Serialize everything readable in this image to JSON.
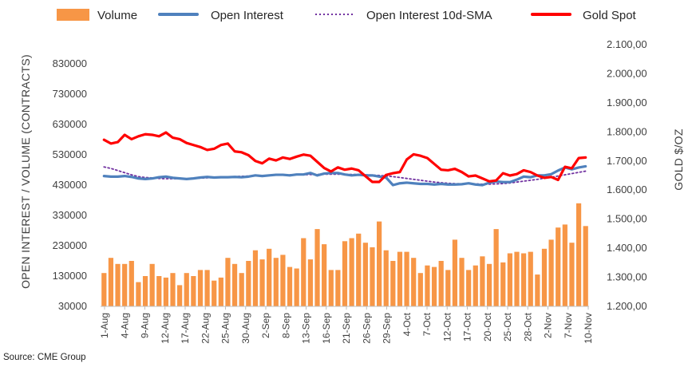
{
  "chart_data": {
    "type": "combo-bar-line",
    "source": "Source: CME Group",
    "left_axis": {
      "title": "OPEN INTEREST / VOLUME (CONTRACTS)",
      "min": 30000,
      "max": 830000,
      "ticks": [
        30000,
        130000,
        230000,
        330000,
        430000,
        530000,
        630000,
        730000,
        830000
      ],
      "tick_labels": [
        "30000",
        "130000",
        "230000",
        "330000",
        "430000",
        "530000",
        "630000",
        "730000",
        "830000"
      ]
    },
    "right_axis": {
      "title": "GOLD $/OZ",
      "min": 1200,
      "max": 2100,
      "ticks": [
        1200,
        1300,
        1400,
        1500,
        1600,
        1700,
        1800,
        1900,
        2000,
        2100
      ],
      "tick_labels": [
        "1.200,00",
        "1.300,00",
        "1.400,00",
        "1.500,00",
        "1.600,00",
        "1.700,00",
        "1.800,00",
        "1.900,00",
        "2.000,00",
        "2.100,00"
      ]
    },
    "x_labels": [
      "1-Aug",
      "4-Aug",
      "9-Aug",
      "12-Aug",
      "17-Aug",
      "22-Aug",
      "25-Aug",
      "30-Aug",
      "2-Sep",
      "8-Sep",
      "13-Sep",
      "16-Sep",
      "21-Sep",
      "26-Sep",
      "29-Sep",
      "4-Oct",
      "7-Oct",
      "12-Oct",
      "17-Oct",
      "20-Oct",
      "25-Oct",
      "28-Oct",
      "2-Nov",
      "7-Nov",
      "10-Nov"
    ],
    "legend": [
      {
        "name": "Volume",
        "style": "bar",
        "color": "#F79646"
      },
      {
        "name": "Open Interest",
        "style": "line",
        "color": "#4F81BD"
      },
      {
        "name": "Open Interest 10d-SMA",
        "style": "dotted",
        "color": "#7030A0"
      },
      {
        "name": "Gold Spot",
        "style": "line",
        "color": "#FF0000"
      }
    ],
    "series": {
      "volume": [
        140000,
        190000,
        170000,
        170000,
        180000,
        110000,
        130000,
        170000,
        130000,
        125000,
        140000,
        100000,
        140000,
        130000,
        150000,
        150000,
        115000,
        125000,
        190000,
        170000,
        140000,
        180000,
        215000,
        185000,
        220000,
        190000,
        200000,
        160000,
        155000,
        255000,
        185000,
        285000,
        235000,
        150000,
        150000,
        245000,
        255000,
        270000,
        240000,
        225000,
        310000,
        215000,
        180000,
        210000,
        210000,
        190000,
        140000,
        165000,
        160000,
        180000,
        150000,
        250000,
        190000,
        150000,
        165000,
        195000,
        170000,
        285000,
        175000,
        205000,
        210000,
        205000,
        210000,
        135000,
        220000,
        250000,
        290000,
        300000,
        240000,
        370000,
        295000
      ],
      "open_interest": [
        460000,
        458000,
        458000,
        460000,
        457000,
        452000,
        450000,
        452000,
        456000,
        458000,
        454000,
        452000,
        450000,
        452000,
        455000,
        457000,
        455000,
        456000,
        456000,
        457000,
        456000,
        458000,
        462000,
        460000,
        462000,
        464000,
        464000,
        462000,
        465000,
        465000,
        470000,
        462000,
        468000,
        470000,
        470000,
        465000,
        462000,
        464000,
        462000,
        462000,
        458000,
        455000,
        430000,
        436000,
        438000,
        436000,
        434000,
        434000,
        432000,
        434000,
        432000,
        432000,
        433000,
        436000,
        432000,
        430000,
        438000,
        442000,
        440000,
        440000,
        448000,
        458000,
        456000,
        462000,
        462000,
        466000,
        478000,
        488000,
        482000,
        488000,
        492000
      ],
      "open_interest_sma": [
        490000,
        485000,
        478000,
        471000,
        464000,
        458000,
        455000,
        454000,
        452000,
        451000,
        451000,
        451000,
        451000,
        452000,
        453000,
        454000,
        455000,
        456000,
        457000,
        458000,
        459000,
        460000,
        461000,
        462000,
        462000,
        463000,
        463000,
        464000,
        464000,
        464000,
        465000,
        465000,
        466000,
        466000,
        466000,
        466000,
        465000,
        465000,
        464000,
        463000,
        462000,
        460000,
        458000,
        455000,
        452000,
        449000,
        446000,
        443000,
        440000,
        438000,
        436000,
        435000,
        434000,
        434000,
        434000,
        433000,
        433000,
        434000,
        435000,
        437000,
        440000,
        443000,
        446000,
        449000,
        453000,
        456000,
        460000,
        464000,
        468000,
        472000,
        476000
      ],
      "gold_spot": [
        1773,
        1760,
        1765,
        1790,
        1775,
        1785,
        1792,
        1790,
        1785,
        1798,
        1780,
        1775,
        1762,
        1755,
        1748,
        1738,
        1742,
        1755,
        1760,
        1733,
        1730,
        1720,
        1700,
        1692,
        1708,
        1702,
        1712,
        1707,
        1715,
        1722,
        1718,
        1697,
        1676,
        1664,
        1678,
        1670,
        1674,
        1668,
        1648,
        1628,
        1628,
        1652,
        1658,
        1662,
        1705,
        1723,
        1718,
        1710,
        1690,
        1670,
        1668,
        1673,
        1662,
        1647,
        1650,
        1640,
        1630,
        1633,
        1658,
        1650,
        1655,
        1668,
        1662,
        1650,
        1642,
        1645,
        1635,
        1680,
        1675,
        1710,
        1712
      ]
    }
  }
}
